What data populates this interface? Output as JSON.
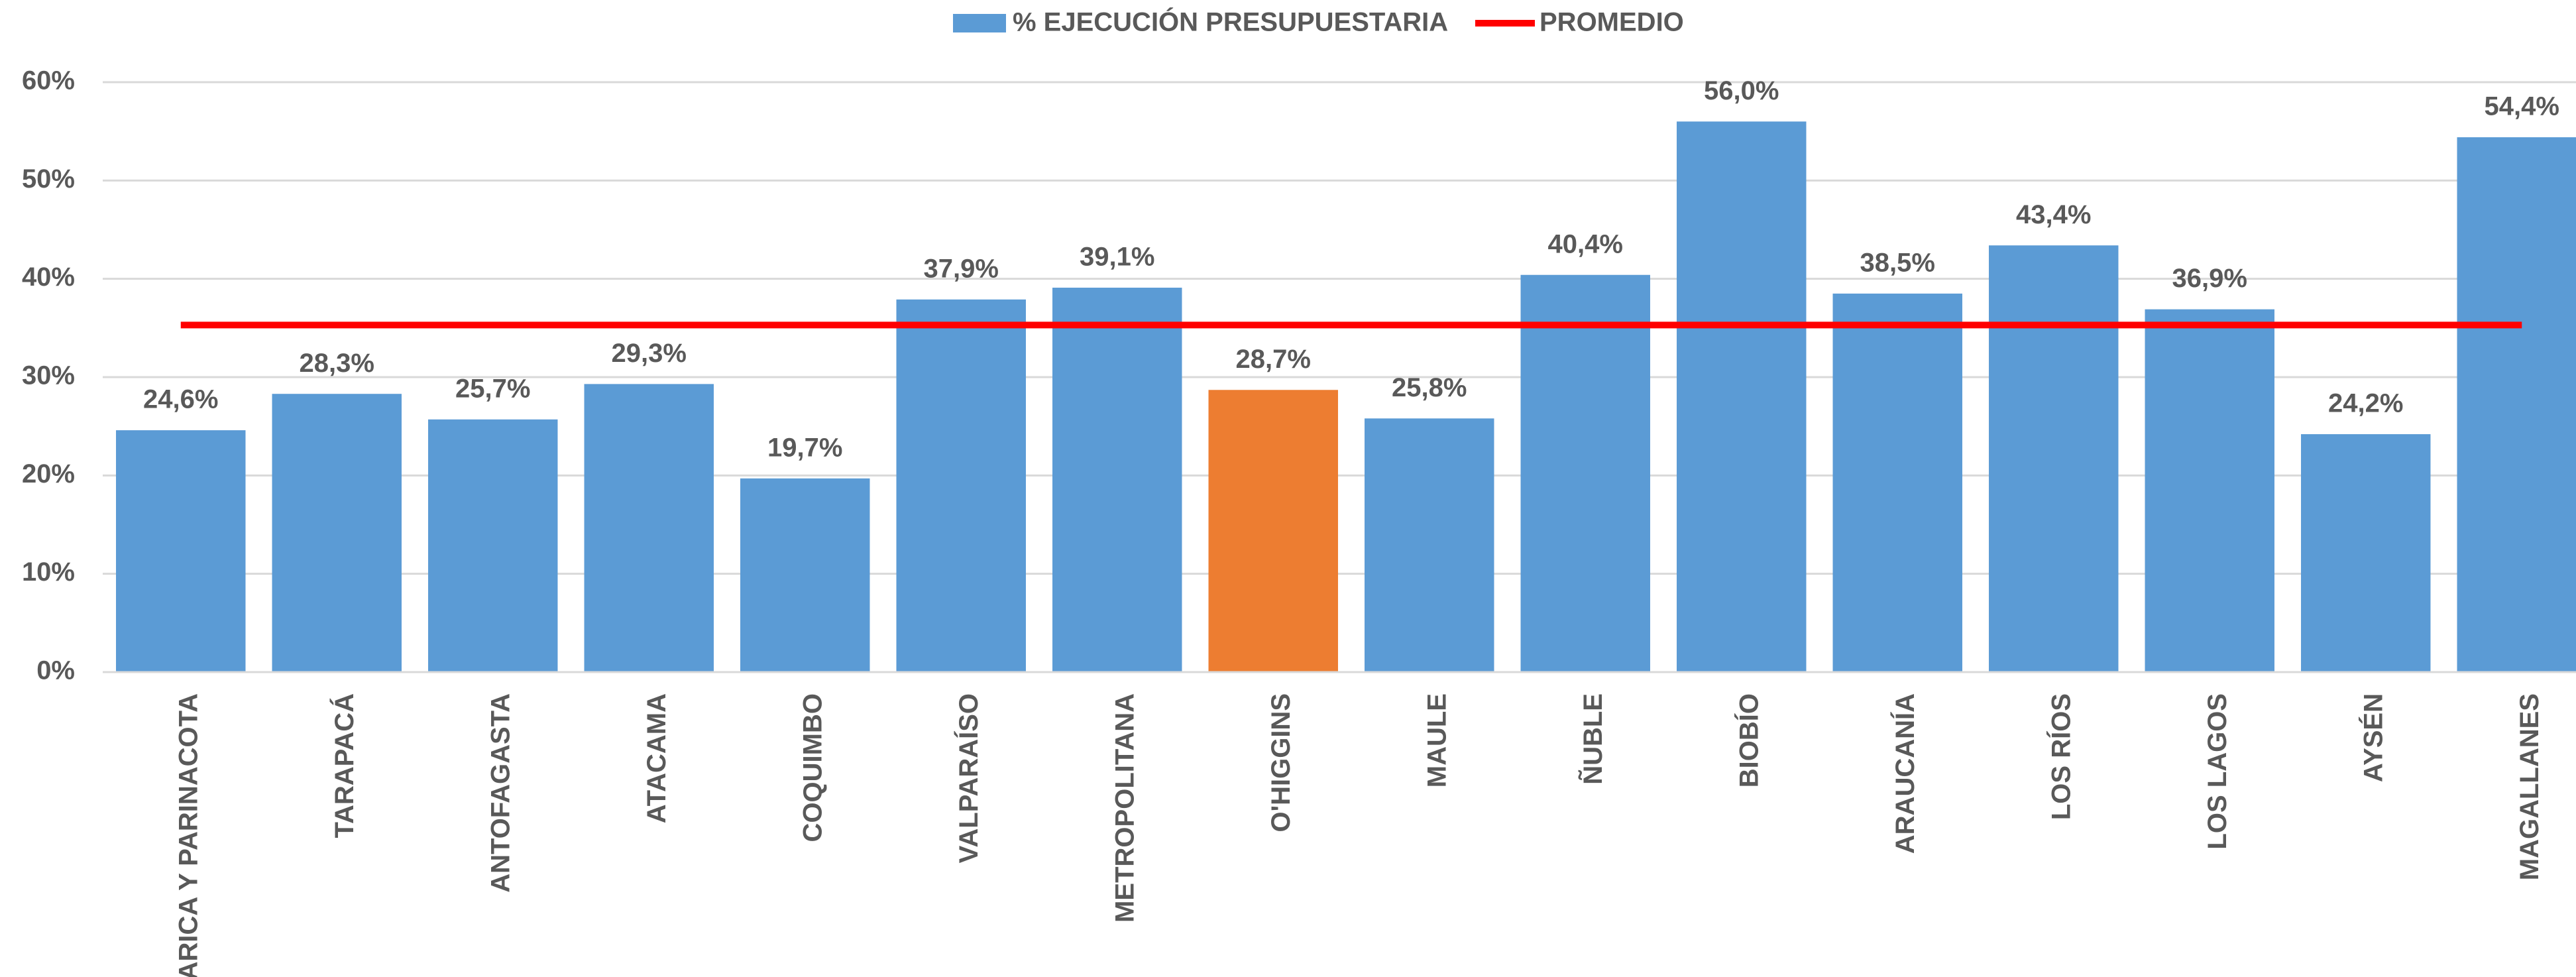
{
  "chart_data": {
    "type": "bar",
    "categories": [
      "ARICA Y PARINACOTA",
      "TARAPACÁ",
      "ANTOFAGASTA",
      "ATACAMA",
      "COQUIMBO",
      "VALPARAÍSO",
      "METROPOLITANA",
      "O'HIGGINS",
      "MAULE",
      "ÑUBLE",
      "BIOBÍO",
      "ARAUCANÍA",
      "LOS RÍOS",
      "LOS LAGOS",
      "AYSÉN",
      "MAGALLANES"
    ],
    "series": [
      {
        "name": "% EJECUCIÓN PRESUPUESTARIA",
        "type": "bar",
        "color": "#5b9bd5",
        "colors": [
          "#5b9bd5",
          "#5b9bd5",
          "#5b9bd5",
          "#5b9bd5",
          "#5b9bd5",
          "#5b9bd5",
          "#5b9bd5",
          "#ed7d31",
          "#5b9bd5",
          "#5b9bd5",
          "#5b9bd5",
          "#5b9bd5",
          "#5b9bd5",
          "#5b9bd5",
          "#5b9bd5",
          "#5b9bd5"
        ],
        "values": [
          24.6,
          28.3,
          25.7,
          29.3,
          19.7,
          37.9,
          39.1,
          28.7,
          25.8,
          40.4,
          56.0,
          38.5,
          43.4,
          36.9,
          24.2,
          54.4
        ],
        "value_labels": [
          "24,6%",
          "28,3%",
          "25,7%",
          "29,3%",
          "19,7%",
          "37,9%",
          "39,1%",
          "28,7%",
          "25,8%",
          "40,4%",
          "56,0%",
          "38,5%",
          "43,4%",
          "36,9%",
          "24,2%",
          "54,4%"
        ]
      },
      {
        "name": "PROMEDIO",
        "type": "line",
        "color": "#ff0000",
        "values": [
          35.3,
          35.3,
          35.3,
          35.3,
          35.3,
          35.3,
          35.3,
          35.3,
          35.3,
          35.3,
          35.3,
          35.3,
          35.3,
          35.3,
          35.3,
          35.3
        ]
      }
    ],
    "ylim": [
      0,
      60
    ],
    "yticks": [
      {
        "value": 0,
        "label": "0%"
      },
      {
        "value": 10,
        "label": "10%"
      },
      {
        "value": 20,
        "label": "20%"
      },
      {
        "value": 30,
        "label": "30%"
      },
      {
        "value": 40,
        "label": "40%"
      },
      {
        "value": 50,
        "label": "50%"
      },
      {
        "value": 60,
        "label": "60%"
      }
    ],
    "grid": true
  }
}
